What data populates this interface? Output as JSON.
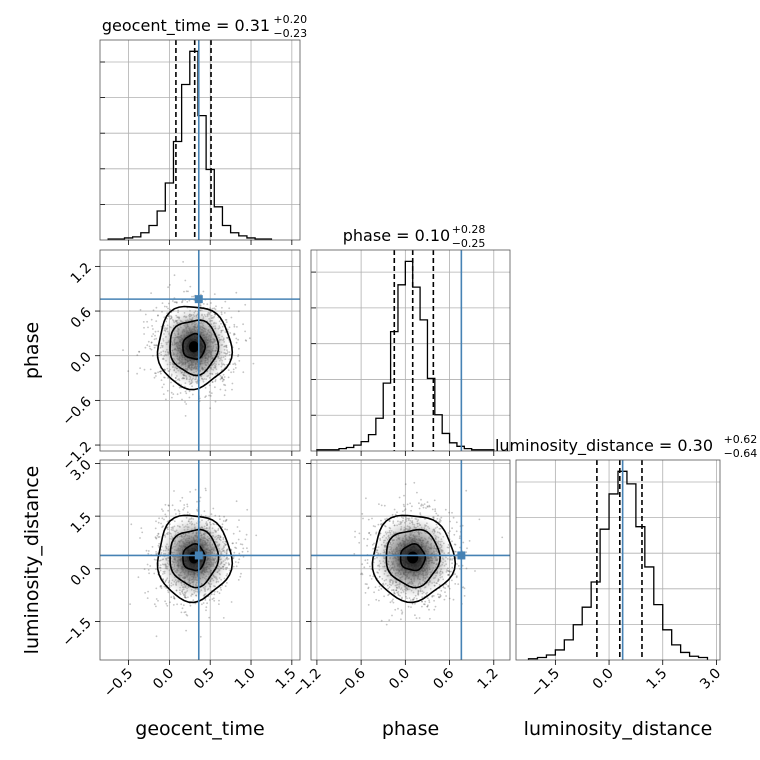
{
  "chart_data": {
    "type": "corner",
    "parameters": [
      "geocent_time",
      "phase",
      "luminosity_distance"
    ],
    "truths": {
      "geocent_time": 0.36,
      "phase": 0.76,
      "luminosity_distance": 0.38
    },
    "truth_color": "#4682b4",
    "ranges": {
      "geocent_time": [
        -0.85,
        1.6
      ],
      "phase": [
        -1.28,
        1.42
      ],
      "luminosity_distance": [
        -2.6,
        3.1
      ]
    },
    "ticks": {
      "geocent_time": [
        "−0.5",
        "0.0",
        "0.5",
        "1.0",
        "1.5"
      ],
      "phase": [
        "−1.2",
        "−0.6",
        "0.0",
        "0.6",
        "1.2"
      ],
      "luminosity_distance": [
        "−1.5",
        "0.0",
        "1.5",
        "3.0"
      ]
    },
    "tick_values": {
      "geocent_time": [
        -0.5,
        0.0,
        0.5,
        1.0,
        1.5
      ],
      "phase": [
        -1.2,
        -0.6,
        0.0,
        0.6,
        1.2
      ],
      "luminosity_distance": [
        -1.5,
        0.0,
        1.5,
        3.0
      ]
    },
    "summaries": [
      {
        "param": "geocent_time",
        "name": "geocent_time",
        "median": "0.31",
        "plus": "+0.20",
        "minus": "−0.23",
        "median_value": 0.31,
        "lower_value": 0.08,
        "upper_value": 0.51
      },
      {
        "param": "phase",
        "name": "phase",
        "median": "0.10",
        "plus": "+0.28",
        "minus": "−0.25",
        "median_value": 0.1,
        "lower_value": -0.15,
        "upper_value": 0.38
      },
      {
        "param": "luminosity_distance",
        "name": "luminosity_distance",
        "median": "0.30",
        "plus": "+0.62",
        "minus": "−0.64",
        "median_value": 0.3,
        "lower_value": -0.34,
        "upper_value": 0.92
      }
    ],
    "histograms": {
      "geocent_time": {
        "edges": [
          -0.75,
          -0.65,
          -0.55,
          -0.45,
          -0.35,
          -0.25,
          -0.15,
          -0.05,
          0.05,
          0.15,
          0.25,
          0.35,
          0.45,
          0.55,
          0.65,
          0.75,
          0.85,
          0.95,
          1.05,
          1.15,
          1.25
        ],
        "counts": [
          1,
          1,
          2,
          3,
          7,
          14,
          28,
          55,
          95,
          150,
          182,
          120,
          68,
          32,
          14,
          7,
          4,
          2,
          1,
          1
        ]
      },
      "phase": {
        "edges": [
          -1.2,
          -1.1,
          -1.0,
          -0.9,
          -0.8,
          -0.7,
          -0.6,
          -0.5,
          -0.4,
          -0.3,
          -0.2,
          -0.1,
          0.0,
          0.1,
          0.2,
          0.3,
          0.4,
          0.5,
          0.6,
          0.7,
          0.8,
          0.9,
          1.0,
          1.1,
          1.2
        ],
        "counts": [
          1,
          1,
          1,
          2,
          3,
          5,
          8,
          14,
          28,
          58,
          102,
          142,
          162,
          140,
          112,
          62,
          31,
          15,
          7,
          4,
          2,
          1,
          1,
          1
        ]
      },
      "luminosity_distance": {
        "edges": [
          -2.25,
          -2.0,
          -1.75,
          -1.5,
          -1.25,
          -1.0,
          -0.75,
          -0.5,
          -0.25,
          0.0,
          0.25,
          0.5,
          0.75,
          1.0,
          1.25,
          1.5,
          1.75,
          2.0,
          2.25,
          2.5,
          2.75
        ],
        "counts": [
          1,
          2,
          4,
          8,
          16,
          28,
          42,
          62,
          104,
          132,
          150,
          140,
          106,
          74,
          44,
          24,
          12,
          6,
          3,
          2
        ]
      }
    },
    "contours_2d": [
      {
        "x": "geocent_time",
        "y": "phase",
        "center": [
          0.3,
          0.12
        ],
        "sigma": [
          0.22,
          0.27
        ]
      },
      {
        "x": "geocent_time",
        "y": "luminosity_distance",
        "center": [
          0.3,
          0.32
        ],
        "sigma": [
          0.22,
          0.6
        ]
      },
      {
        "x": "phase",
        "y": "luminosity_distance",
        "center": [
          0.1,
          0.32
        ],
        "sigma": [
          0.27,
          0.6
        ]
      }
    ],
    "grid": true
  }
}
